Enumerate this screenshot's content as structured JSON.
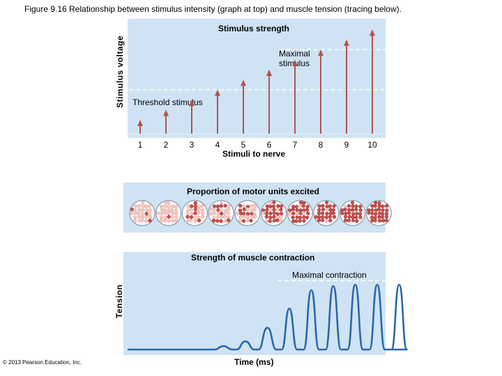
{
  "caption": "Figure 9.16 Relationship between stimulus intensity (graph at top) and muscle tension (tracing below).",
  "copyright": "© 2013 Pearson Education, Inc.",
  "colors": {
    "panel": "#cfe3f4",
    "arrow": "#b0534f",
    "trace": "#2a67a8",
    "dash": "#ffffff"
  },
  "chart_data": [
    {
      "type": "bar",
      "title": "Stimulus strength",
      "ylabel": "Stimulus voltage",
      "xlabel": "Stimuli to nerve",
      "categories": [
        "1",
        "2",
        "3",
        "4",
        "5",
        "6",
        "7",
        "8",
        "9",
        "10"
      ],
      "values": [
        1,
        1.8,
        2.6,
        3.4,
        4.2,
        5,
        5.8,
        6.6,
        7.4,
        8.2
      ],
      "ylim": [
        0,
        9
      ],
      "annotations": {
        "threshold": "Threshold stimulus",
        "maximal": "Maximal stimulus"
      },
      "threshold_value": 3.4,
      "maximal_value": 6.6
    },
    {
      "type": "table",
      "title": "Proportion of motor units excited",
      "circles": 10,
      "excited_fraction": [
        0.05,
        0.12,
        0.2,
        0.3,
        0.45,
        0.6,
        0.75,
        0.9,
        0.95,
        1.0
      ]
    },
    {
      "type": "line",
      "title": "Strength of muscle contraction",
      "ylabel": "Tension",
      "xlabel": "Time (ms)",
      "annotation": "Maximal contraction",
      "peaks": [
        0,
        0,
        0,
        0.05,
        0.12,
        0.32,
        0.6,
        0.87,
        0.93,
        0.95,
        0.95,
        0.95
      ],
      "ylim": [
        0,
        1
      ]
    }
  ]
}
